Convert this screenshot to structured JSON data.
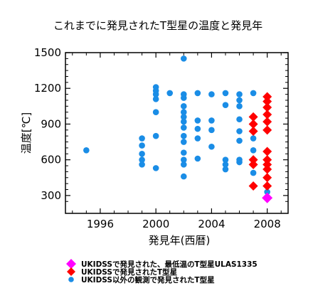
{
  "chart_data": {
    "type": "scatter",
    "title": "これまでに発見されたT型星の温度と発見年",
    "xlabel": "発見年(西暦)",
    "ylabel": "温度[℃]",
    "xlim": [
      1993.5,
      2009.5
    ],
    "ylim": [
      150,
      1500
    ],
    "xticks": [
      1996,
      2000,
      2004,
      2008
    ],
    "yticks": [
      300,
      600,
      900,
      1200,
      1500
    ],
    "x_tick_labels": [
      "1996",
      "2000",
      "2004",
      "2008"
    ],
    "y_tick_labels": [
      "300",
      "600",
      "900",
      "1200",
      "1500"
    ],
    "grid": false,
    "legend_position": "bottom",
    "series": [
      {
        "name": "UKIDSSで発見された、最低温のT型星ULAS1335",
        "marker": "diamond",
        "color": "#ff00ff",
        "points": [
          [
            2008,
            280
          ]
        ]
      },
      {
        "name": "UKIDSSで発見されたT型星",
        "marker": "diamond",
        "color": "#ff0000",
        "points": [
          [
            2007,
            380
          ],
          [
            2007,
            560
          ],
          [
            2007,
            600
          ],
          [
            2007,
            840
          ],
          [
            2007,
            900
          ],
          [
            2007,
            960
          ],
          [
            2008,
            380
          ],
          [
            2008,
            450
          ],
          [
            2008,
            520
          ],
          [
            2008,
            560
          ],
          [
            2008,
            600
          ],
          [
            2008,
            670
          ],
          [
            2008,
            850
          ],
          [
            2008,
            920
          ],
          [
            2008,
            980
          ],
          [
            2008,
            1040
          ],
          [
            2008,
            1090
          ],
          [
            2008,
            1130
          ]
        ]
      },
      {
        "name": "UKIDSS以外の観測で発見されたT型星",
        "marker": "circle",
        "color": "#1a8de6",
        "points": [
          [
            1995,
            680
          ],
          [
            1999,
            560
          ],
          [
            1999,
            600
          ],
          [
            1999,
            650
          ],
          [
            1999,
            720
          ],
          [
            1999,
            780
          ],
          [
            2000,
            530
          ],
          [
            2000,
            800
          ],
          [
            2000,
            1000
          ],
          [
            2000,
            1110
          ],
          [
            2000,
            1150
          ],
          [
            2000,
            1180
          ],
          [
            2000,
            1210
          ],
          [
            2001,
            1160
          ],
          [
            2002,
            460
          ],
          [
            2002,
            560
          ],
          [
            2002,
            600
          ],
          [
            2002,
            660
          ],
          [
            2002,
            750
          ],
          [
            2002,
            800
          ],
          [
            2002,
            870
          ],
          [
            2002,
            920
          ],
          [
            2002,
            960
          ],
          [
            2002,
            1000
          ],
          [
            2002,
            1050
          ],
          [
            2002,
            1120
          ],
          [
            2002,
            1150
          ],
          [
            2002,
            1450
          ],
          [
            2003,
            610
          ],
          [
            2003,
            780
          ],
          [
            2003,
            860
          ],
          [
            2003,
            930
          ],
          [
            2003,
            1160
          ],
          [
            2004,
            710
          ],
          [
            2004,
            850
          ],
          [
            2004,
            930
          ],
          [
            2004,
            1150
          ],
          [
            2005,
            520
          ],
          [
            2005,
            560
          ],
          [
            2005,
            600
          ],
          [
            2005,
            1060
          ],
          [
            2005,
            1160
          ],
          [
            2006,
            580
          ],
          [
            2006,
            600
          ],
          [
            2006,
            760
          ],
          [
            2006,
            840
          ],
          [
            2006,
            940
          ],
          [
            2006,
            1050
          ],
          [
            2006,
            1100
          ],
          [
            2006,
            1150
          ],
          [
            2007,
            490
          ],
          [
            2007,
            680
          ],
          [
            2007,
            780
          ],
          [
            2007,
            1160
          ],
          [
            2008,
            330
          ],
          [
            2008,
            380
          ],
          [
            2008,
            450
          ]
        ]
      }
    ]
  }
}
